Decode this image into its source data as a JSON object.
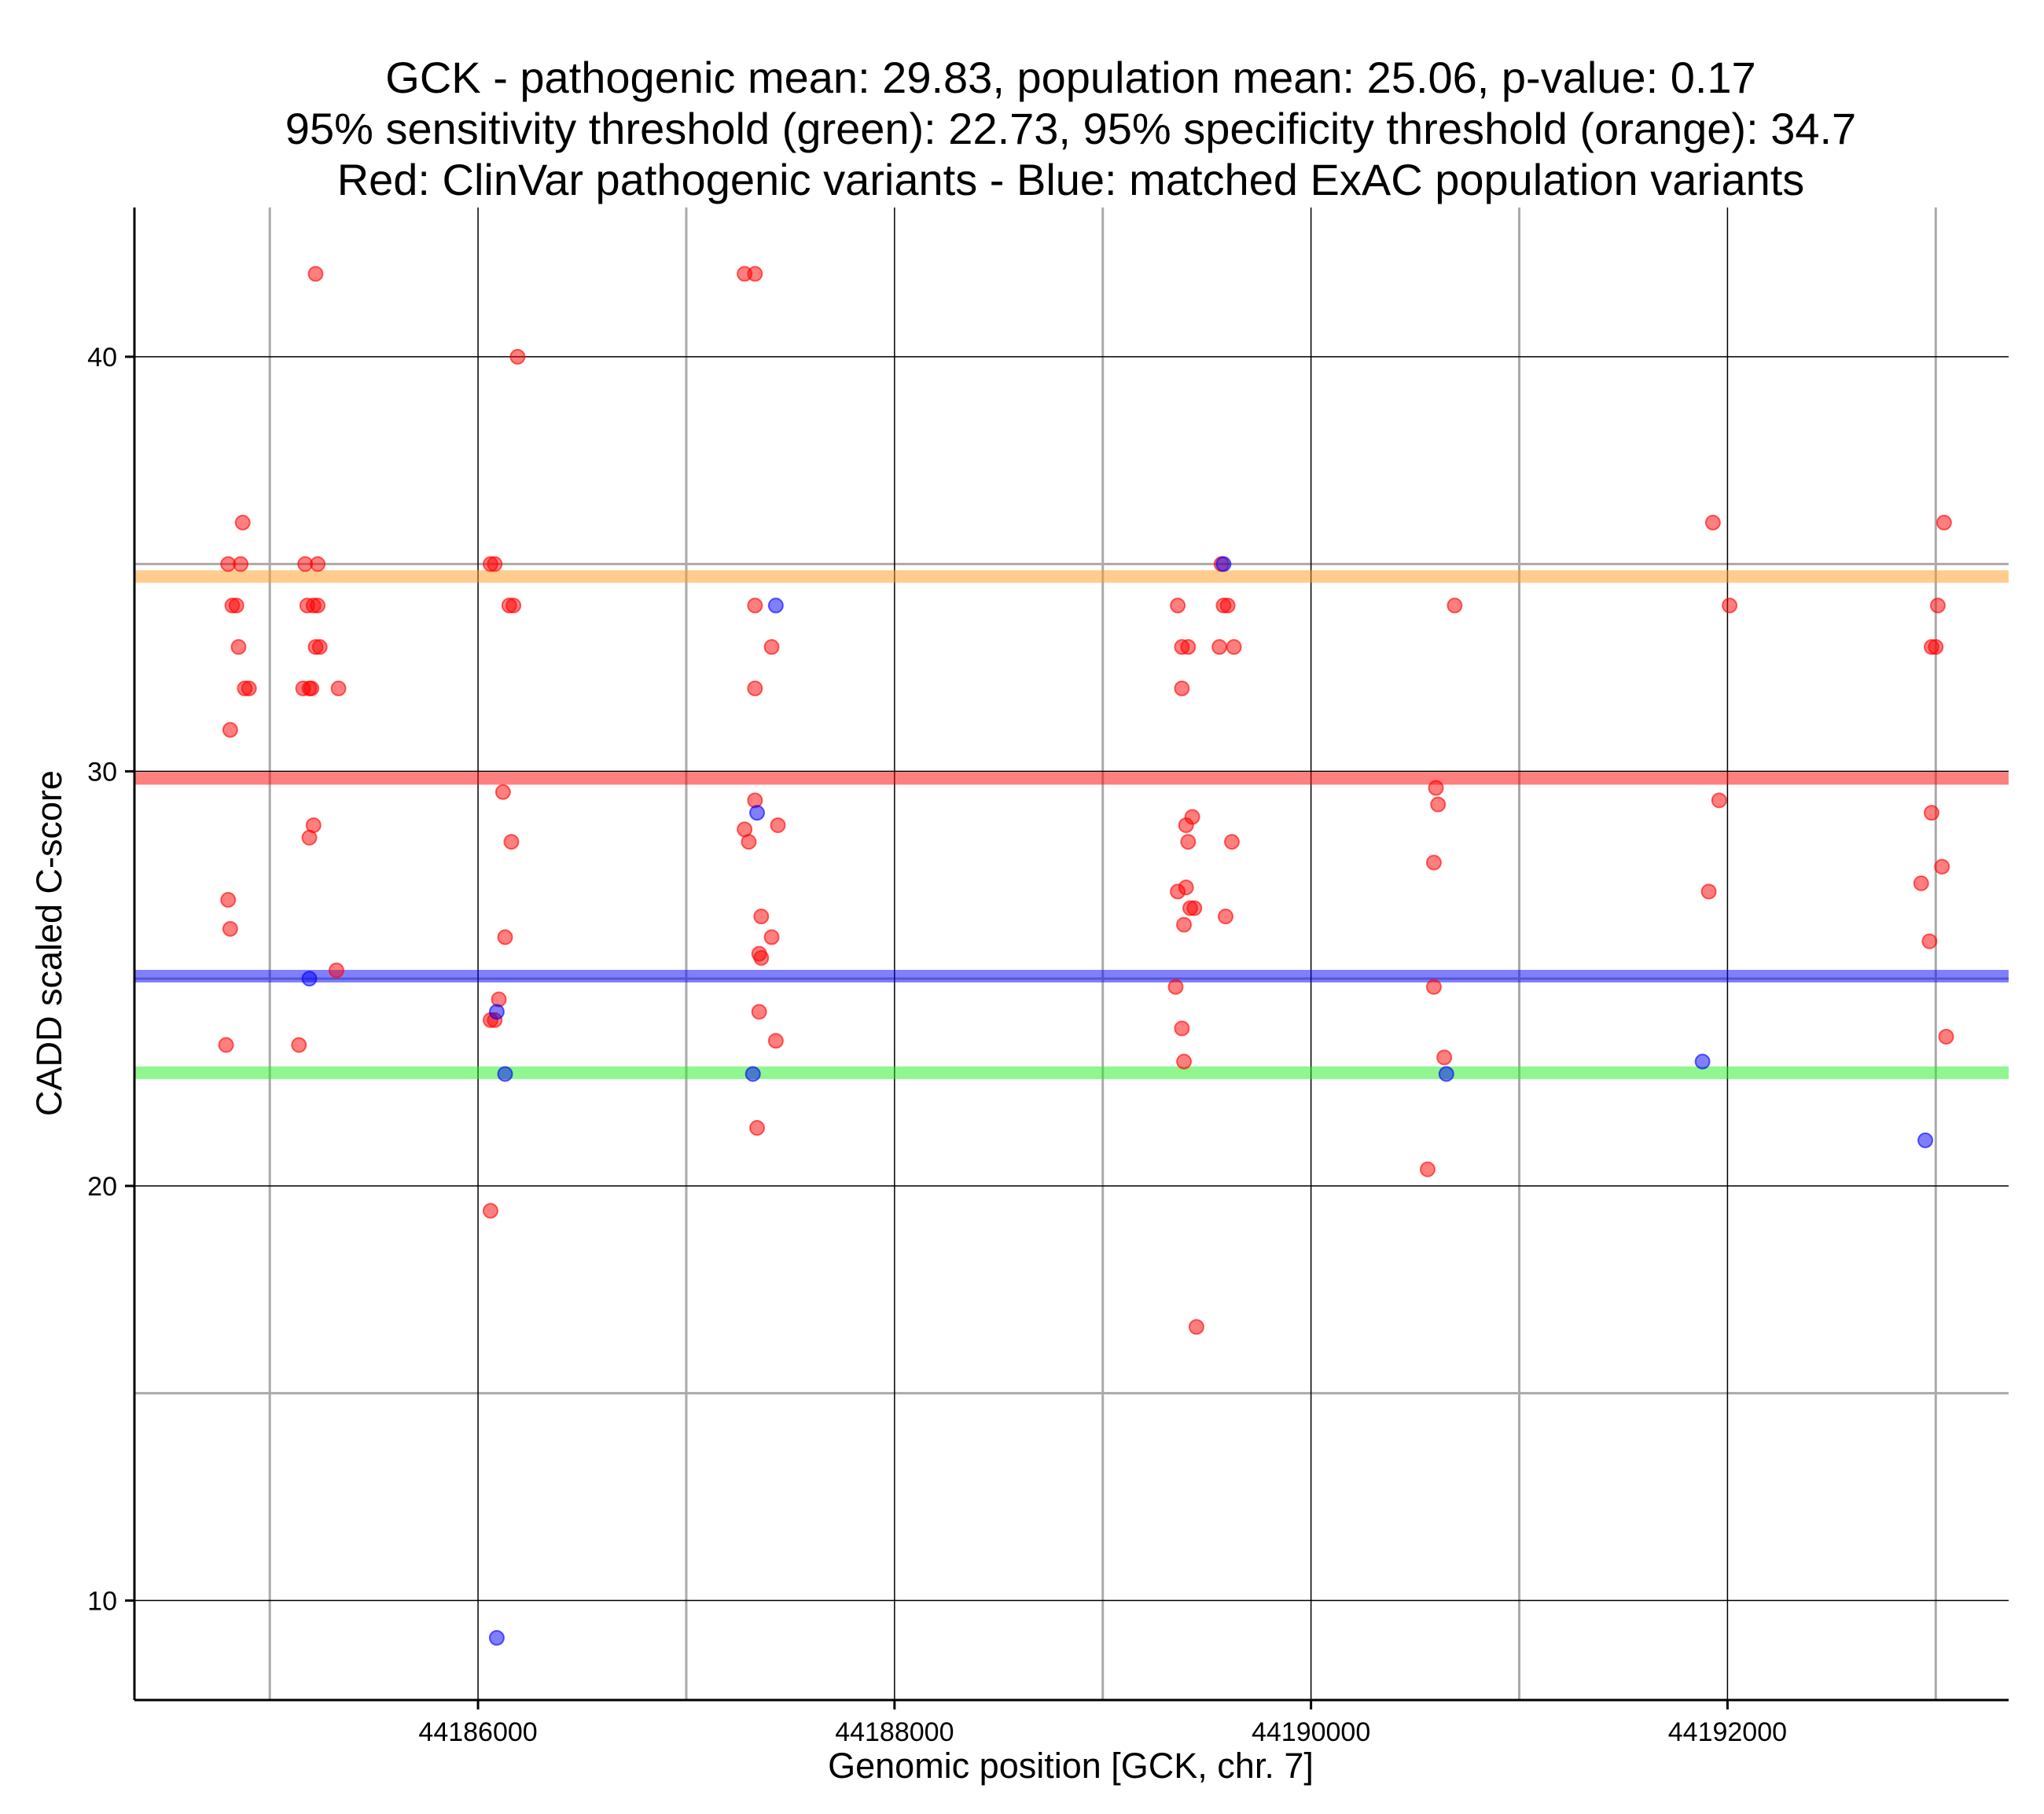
{
  "chart_data": {
    "type": "scatter",
    "title_lines": [
      "GCK - pathogenic mean: 29.83, population mean: 25.06, p-value: 0.17",
      "95% sensitivity threshold (green): 22.73, 95% specificity threshold (orange): 34.7",
      "Red: ClinVar pathogenic variants - Blue: matched ExAC population variants"
    ],
    "xlabel": "Genomic position [GCK, chr. 7]",
    "ylabel": "CADD scaled C-score",
    "xlim": [
      44184350,
      44193350
    ],
    "ylim": [
      7.6,
      43.6
    ],
    "x_ticks": [
      44186000,
      44188000,
      44190000,
      44192000
    ],
    "x_tick_labels": [
      "44186000",
      "44188000",
      "44190000",
      "44192000"
    ],
    "x_minor_gridlines": [
      44185000,
      44187000,
      44189000,
      44191000,
      44193000
    ],
    "y_ticks": [
      10,
      20,
      30,
      40
    ],
    "y_tick_labels": [
      "10",
      "20",
      "30",
      "40"
    ],
    "y_minor_gridlines": [
      15,
      25,
      35
    ],
    "colors": {
      "pathogenic": "#ff0000",
      "population": "#0000ff",
      "sensitivity": "#66ff66",
      "specificity": "#ffaa44",
      "major_grid": "#000000",
      "minor_grid": "#aaaaaa"
    },
    "reference_lines": [
      {
        "name": "pathogenic-mean",
        "value": 29.83,
        "color": "#ff0000",
        "alpha": 0.5
      },
      {
        "name": "population-mean",
        "value": 25.06,
        "color": "#0000ff",
        "alpha": 0.5
      },
      {
        "name": "sensitivity-threshold",
        "value": 22.73,
        "color": "#22ee22",
        "alpha": 0.5
      },
      {
        "name": "specificity-threshold",
        "value": 34.7,
        "color": "#ff9922",
        "alpha": 0.5
      }
    ],
    "series": [
      {
        "name": "ClinVar pathogenic variants",
        "color": "#ff0000",
        "points": [
          [
            44185220,
            42
          ],
          [
            44187280,
            42
          ],
          [
            44187330,
            42
          ],
          [
            44186190,
            40
          ],
          [
            44184870,
            36
          ],
          [
            44184800,
            35
          ],
          [
            44184860,
            35
          ],
          [
            44185170,
            35
          ],
          [
            44185230,
            35
          ],
          [
            44186060,
            35
          ],
          [
            44186080,
            35
          ],
          [
            44184820,
            34
          ],
          [
            44184840,
            34
          ],
          [
            44185180,
            34
          ],
          [
            44185210,
            34
          ],
          [
            44185230,
            34
          ],
          [
            44186150,
            34
          ],
          [
            44186170,
            34
          ],
          [
            44184850,
            33
          ],
          [
            44185220,
            33
          ],
          [
            44185240,
            33
          ],
          [
            44184880,
            32
          ],
          [
            44184900,
            32
          ],
          [
            44185160,
            32
          ],
          [
            44185190,
            32
          ],
          [
            44185200,
            32
          ],
          [
            44185330,
            32
          ],
          [
            44184810,
            31
          ],
          [
            44186120,
            29.5
          ],
          [
            44185210,
            28.7
          ],
          [
            44185190,
            28.4
          ],
          [
            44186160,
            28.3
          ],
          [
            44184800,
            26.9
          ],
          [
            44184810,
            26.2
          ],
          [
            44186130,
            26.0
          ],
          [
            44185320,
            25.2
          ],
          [
            44186100,
            24.5
          ],
          [
            44186060,
            24.0
          ],
          [
            44186080,
            24.0
          ],
          [
            44184790,
            23.4
          ],
          [
            44185140,
            23.4
          ],
          [
            44186060,
            19.4
          ],
          [
            44187330,
            34
          ],
          [
            44187410,
            33
          ],
          [
            44187330,
            32
          ],
          [
            44187330,
            29.3
          ],
          [
            44187280,
            28.6
          ],
          [
            44187300,
            28.3
          ],
          [
            44187440,
            28.7
          ],
          [
            44187360,
            26.5
          ],
          [
            44187410,
            26.0
          ],
          [
            44187350,
            25.6
          ],
          [
            44187360,
            25.5
          ],
          [
            44187350,
            24.2
          ],
          [
            44187430,
            23.5
          ],
          [
            44187340,
            21.4
          ],
          [
            44189570,
            35
          ],
          [
            44189360,
            34
          ],
          [
            44189580,
            34
          ],
          [
            44189600,
            34
          ],
          [
            44189380,
            33
          ],
          [
            44189410,
            33
          ],
          [
            44189560,
            33
          ],
          [
            44189630,
            33
          ],
          [
            44189380,
            32
          ],
          [
            44189430,
            28.9
          ],
          [
            44189400,
            28.7
          ],
          [
            44189410,
            28.3
          ],
          [
            44189620,
            28.3
          ],
          [
            44189360,
            27.1
          ],
          [
            44189400,
            27.2
          ],
          [
            44189420,
            26.7
          ],
          [
            44189440,
            26.7
          ],
          [
            44189390,
            26.3
          ],
          [
            44189590,
            26.5
          ],
          [
            44189350,
            24.8
          ],
          [
            44189380,
            23.8
          ],
          [
            44189390,
            23.0
          ],
          [
            44189450,
            16.6
          ],
          [
            44190690,
            34
          ],
          [
            44190600,
            29.6
          ],
          [
            44190610,
            29.2
          ],
          [
            44190590,
            27.8
          ],
          [
            44190590,
            24.8
          ],
          [
            44190640,
            23.1
          ],
          [
            44190560,
            20.4
          ],
          [
            44191930,
            36
          ],
          [
            44192010,
            34
          ],
          [
            44191960,
            29.3
          ],
          [
            44191910,
            27.1
          ],
          [
            44193040,
            36
          ],
          [
            44193010,
            34
          ],
          [
            44192980,
            33
          ],
          [
            44193000,
            33
          ],
          [
            44192980,
            29.0
          ],
          [
            44193030,
            27.7
          ],
          [
            44192930,
            27.3
          ],
          [
            44192970,
            25.9
          ],
          [
            44193050,
            23.6
          ]
        ]
      },
      {
        "name": "matched ExAC population variants",
        "color": "#0000ff",
        "points": [
          [
            44187430,
            34
          ],
          [
            44187340,
            29.0
          ],
          [
            44185190,
            25.0
          ],
          [
            44186090,
            24.2
          ],
          [
            44189580,
            35
          ],
          [
            44191880,
            23.0
          ],
          [
            44192950,
            21.1
          ],
          [
            44186090,
            9.1
          ],
          [
            44186130,
            22.7
          ],
          [
            44187320,
            22.7
          ],
          [
            44190650,
            22.7
          ]
        ]
      }
    ]
  }
}
